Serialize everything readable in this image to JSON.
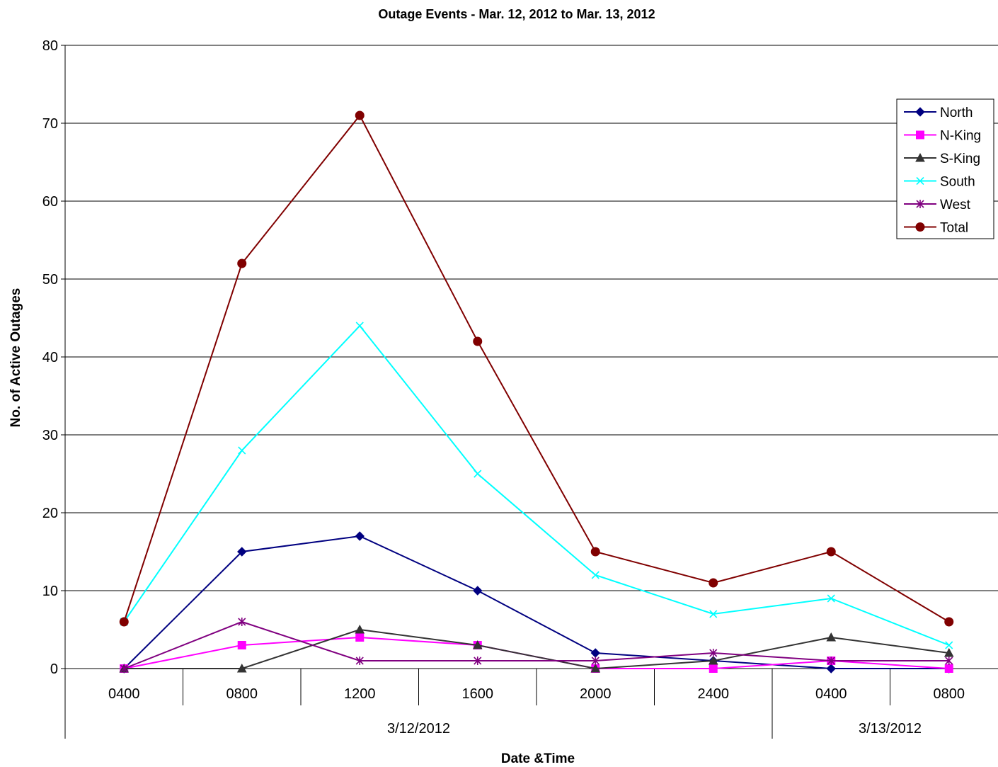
{
  "chart_data": {
    "type": "line",
    "title": "Outage Events - Mar. 12, 2012 to Mar. 13, 2012",
    "xlabel": "Date &Time",
    "ylabel": "No. of Active Outages",
    "ylim": [
      0,
      80
    ],
    "yticks": [
      0,
      10,
      20,
      30,
      40,
      50,
      60,
      70,
      80
    ],
    "categories": [
      "0400",
      "0800",
      "1200",
      "1600",
      "2000",
      "2400",
      "0400",
      "0800"
    ],
    "date_groups": [
      {
        "label": "3/12/2012",
        "count": 6
      },
      {
        "label": "3/13/2012",
        "count": 2
      }
    ],
    "grid": true,
    "legend_position": "right",
    "series": [
      {
        "name": "North",
        "color": "#000080",
        "marker": "diamond",
        "values": [
          0,
          15,
          17,
          10,
          2,
          1,
          0,
          0
        ]
      },
      {
        "name": "N-King",
        "color": "#FF00FF",
        "marker": "square",
        "values": [
          0,
          3,
          4,
          3,
          0,
          0,
          1,
          0
        ]
      },
      {
        "name": "S-King",
        "color": "#333333",
        "marker": "triangle",
        "values": [
          0,
          0,
          5,
          3,
          0,
          1,
          4,
          2
        ]
      },
      {
        "name": "South",
        "color": "#00FFFF",
        "marker": "x",
        "values": [
          6,
          28,
          44,
          25,
          12,
          7,
          9,
          3
        ]
      },
      {
        "name": "West",
        "color": "#800080",
        "marker": "star",
        "values": [
          0,
          6,
          1,
          1,
          1,
          2,
          1,
          1
        ]
      },
      {
        "name": "Total",
        "color": "#800000",
        "marker": "circle",
        "values": [
          6,
          52,
          71,
          42,
          15,
          11,
          15,
          6
        ]
      }
    ]
  }
}
